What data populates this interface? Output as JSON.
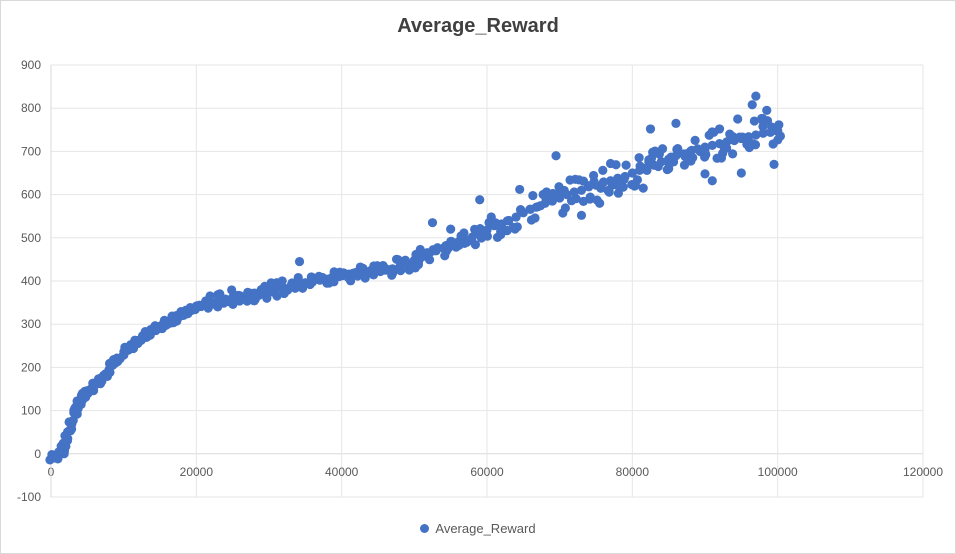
{
  "chart_data": {
    "type": "scatter",
    "title": "Average_Reward",
    "xlabel": "",
    "ylabel": "",
    "xlim": [
      0,
      120000
    ],
    "ylim": [
      -100,
      900
    ],
    "x_ticks": [
      0,
      20000,
      40000,
      60000,
      80000,
      100000,
      120000
    ],
    "y_ticks": [
      -100,
      0,
      100,
      200,
      300,
      400,
      500,
      600,
      700,
      800,
      900
    ],
    "x_tick_labels": [
      "0",
      "20000",
      "40000",
      "60000",
      "80000",
      "100000",
      "120000"
    ],
    "y_tick_labels": [
      "-100",
      "0",
      "100",
      "200",
      "300",
      "400",
      "500",
      "600",
      "700",
      "800",
      "900"
    ],
    "grid": true,
    "legend_position": "bottom",
    "color": "#4472c4",
    "series": [
      {
        "name": "Average_Reward",
        "x": [
          200,
          500,
          800,
          1100,
          1400,
          1700,
          2000,
          2300,
          2600,
          2900,
          3200,
          3500,
          3800,
          4100,
          4400,
          4700,
          5000,
          5500,
          6000,
          6500,
          7000,
          7500,
          8000,
          8500,
          9000,
          9500,
          10000,
          10500,
          11000,
          11500,
          12000,
          12500,
          13000,
          13500,
          14000,
          14500,
          15000,
          15500,
          16000,
          16500,
          17000,
          17500,
          18000,
          18500,
          19000,
          19500,
          20000,
          21000,
          22000,
          23000,
          24000,
          25000,
          26000,
          27000,
          28000,
          29000,
          30000,
          31000,
          32000,
          33000,
          34000,
          35000,
          36000,
          37000,
          38000,
          39000,
          40000,
          41000,
          42000,
          43000,
          44000,
          45000,
          46000,
          47000,
          48000,
          49000,
          50000,
          51000,
          52000,
          53000,
          54000,
          55000,
          56000,
          57000,
          58000,
          59000,
          60000,
          61000,
          62000,
          63000,
          64000,
          65000,
          66000,
          67000,
          68000,
          69000,
          70000,
          71000,
          72000,
          73000,
          74000,
          75000,
          76000,
          77000,
          78000,
          79000,
          80000,
          81000,
          82000,
          83000,
          84000,
          85000,
          86000,
          87000,
          88000,
          89000,
          90000,
          91000,
          92000,
          93000,
          94000,
          95000,
          96000,
          97000,
          98000,
          99000,
          100000
        ],
        "values": [
          -10,
          -8,
          -5,
          0,
          5,
          10,
          20,
          35,
          55,
          75,
          95,
          110,
          118,
          122,
          128,
          132,
          140,
          150,
          158,
          168,
          175,
          185,
          195,
          205,
          212,
          220,
          230,
          240,
          245,
          255,
          262,
          268,
          275,
          280,
          285,
          290,
          295,
          300,
          305,
          310,
          315,
          318,
          322,
          325,
          330,
          335,
          340,
          345,
          350,
          355,
          358,
          362,
          366,
          368,
          372,
          374,
          378,
          381,
          384,
          388,
          392,
          396,
          398,
          402,
          404,
          408,
          412,
          416,
          418,
          422,
          424,
          425,
          425,
          428,
          433,
          440,
          448,
          455,
          463,
          470,
          476,
          482,
          490,
          496,
          502,
          510,
          518,
          528,
          532,
          540,
          548,
          558,
          566,
          572,
          580,
          585,
          592,
          600,
          606,
          610,
          618,
          622,
          628,
          632,
          638,
          642,
          650,
          656,
          662,
          668,
          676,
          682,
          690,
          694,
          700,
          706,
          710,
          714,
          718,
          722,
          726,
          730,
          734,
          738,
          742,
          744,
          746
        ],
        "scatter_extra": [
          {
            "x": 34200,
            "y": 445
          },
          {
            "x": 52500,
            "y": 535
          },
          {
            "x": 55000,
            "y": 520
          },
          {
            "x": 59000,
            "y": 588
          },
          {
            "x": 64500,
            "y": 612
          },
          {
            "x": 69500,
            "y": 690
          },
          {
            "x": 73000,
            "y": 552
          },
          {
            "x": 75500,
            "y": 580
          },
          {
            "x": 77000,
            "y": 672
          },
          {
            "x": 81500,
            "y": 615
          },
          {
            "x": 82500,
            "y": 752
          },
          {
            "x": 85000,
            "y": 660
          },
          {
            "x": 86000,
            "y": 765
          },
          {
            "x": 90000,
            "y": 648
          },
          {
            "x": 91000,
            "y": 632
          },
          {
            "x": 92000,
            "y": 752
          },
          {
            "x": 94500,
            "y": 775
          },
          {
            "x": 95000,
            "y": 650
          },
          {
            "x": 96500,
            "y": 808
          },
          {
            "x": 97000,
            "y": 828
          },
          {
            "x": 98000,
            "y": 770
          },
          {
            "x": 98500,
            "y": 795
          },
          {
            "x": 99500,
            "y": 670
          },
          {
            "x": 100000,
            "y": 748
          }
        ]
      }
    ]
  }
}
